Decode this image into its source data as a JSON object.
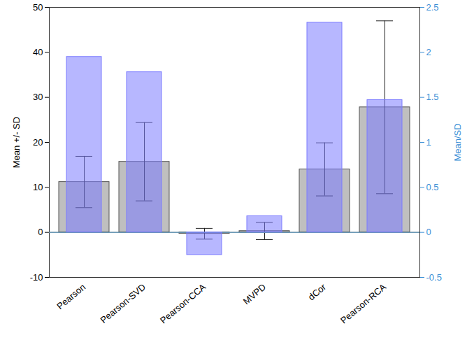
{
  "chart_data": {
    "type": "bar",
    "categories": [
      "Pearson",
      "Pearson-SVD",
      "Pearson-CCA",
      "MVPD",
      "dCor",
      "Pearson-RCA"
    ],
    "y_label": "Mean +/- SD",
    "y2_label": "Mean/SD",
    "ylim": [
      -10,
      50
    ],
    "yticks": [
      -10,
      0,
      10,
      20,
      30,
      40,
      50
    ],
    "y2lim": [
      -0.5,
      2.5
    ],
    "y2ticks": [
      -0.5,
      0,
      0.5,
      1,
      1.5,
      2,
      2.5
    ],
    "series": [
      {
        "color": "#bfbfbf",
        "values": [
          11.2,
          15.7,
          -0.3,
          0.3,
          14,
          27.8
        ],
        "errors": [
          5.7,
          8.7,
          1.2,
          1.9,
          5.9,
          19.2
        ]
      },
      {
        "color": "#7b7bff",
        "values": [
          1.95,
          1.78,
          -0.25,
          0.18,
          2.33,
          1.47
        ],
        "axis": "y2"
      }
    ]
  }
}
